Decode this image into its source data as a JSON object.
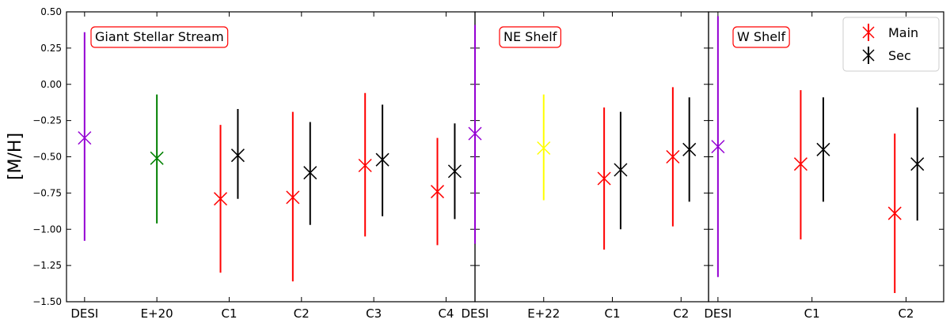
{
  "chart_data": {
    "type": "errorbar",
    "ylabel": "[M/H]",
    "ylim": [
      -1.5,
      0.5
    ],
    "yticks": [
      "0.50",
      "0.25",
      "0.00",
      "−0.25",
      "−0.50",
      "−0.75",
      "−1.00",
      "−1.25",
      "−1.50"
    ],
    "ytick_values": [
      0.5,
      0.25,
      0.0,
      -0.25,
      -0.5,
      -0.75,
      -1.0,
      -1.25,
      -1.5
    ],
    "legend": {
      "placement": "top-right",
      "entries": [
        {
          "label": "Main",
          "color": "#ff0000"
        },
        {
          "label": "Sec",
          "color": "#000000"
        }
      ]
    },
    "panels": [
      {
        "label": "Giant Stellar Stream",
        "x_ticks": [
          {
            "label": "DESI",
            "x": 0
          },
          {
            "label": "E+20",
            "x": 1
          },
          {
            "label": "C1",
            "x": 2
          },
          {
            "label": "C2",
            "x": 3
          },
          {
            "label": "C3",
            "x": 4
          },
          {
            "label": "C4",
            "x": 5
          }
        ],
        "xlim": [
          -0.25,
          5.4
        ],
        "points": [
          {
            "x": 0.0,
            "y": -0.37,
            "low": -1.08,
            "high": 0.36,
            "color": "#9400d3",
            "series": "DESI"
          },
          {
            "x": 1.0,
            "y": -0.51,
            "low": -0.96,
            "high": -0.07,
            "color": "#008000",
            "series": "E+20"
          },
          {
            "x": 1.88,
            "y": -0.79,
            "low": -1.3,
            "high": -0.28,
            "color": "#ff0000",
            "series": "Main"
          },
          {
            "x": 2.12,
            "y": -0.49,
            "low": -0.79,
            "high": -0.17,
            "color": "#000000",
            "series": "Sec"
          },
          {
            "x": 2.88,
            "y": -0.78,
            "low": -1.36,
            "high": -0.19,
            "color": "#ff0000",
            "series": "Main"
          },
          {
            "x": 3.12,
            "y": -0.61,
            "low": -0.97,
            "high": -0.26,
            "color": "#000000",
            "series": "Sec"
          },
          {
            "x": 3.88,
            "y": -0.56,
            "low": -1.05,
            "high": -0.06,
            "color": "#ff0000",
            "series": "Main"
          },
          {
            "x": 4.12,
            "y": -0.52,
            "low": -0.91,
            "high": -0.14,
            "color": "#000000",
            "series": "Sec"
          },
          {
            "x": 4.88,
            "y": -0.74,
            "low": -1.11,
            "high": -0.37,
            "color": "#ff0000",
            "series": "Main"
          },
          {
            "x": 5.12,
            "y": -0.6,
            "low": -0.93,
            "high": -0.27,
            "color": "#000000",
            "series": "Sec"
          }
        ]
      },
      {
        "label": "NE Shelf",
        "x_ticks": [
          {
            "label": "DESI",
            "x": 0
          },
          {
            "label": "E+22",
            "x": 1
          },
          {
            "label": "C1",
            "x": 2
          },
          {
            "label": "C2",
            "x": 3
          }
        ],
        "xlim": [
          0.0,
          3.4
        ],
        "points": [
          {
            "x": 0.0,
            "y": -0.34,
            "low": -1.1,
            "high": 0.41,
            "color": "#9400d3",
            "series": "DESI"
          },
          {
            "x": 1.0,
            "y": -0.44,
            "low": -0.8,
            "high": -0.07,
            "color": "#ffff00",
            "series": "E+22"
          },
          {
            "x": 1.88,
            "y": -0.65,
            "low": -1.14,
            "high": -0.16,
            "color": "#ff0000",
            "series": "Main"
          },
          {
            "x": 2.12,
            "y": -0.59,
            "low": -1.0,
            "high": -0.19,
            "color": "#000000",
            "series": "Sec"
          },
          {
            "x": 2.88,
            "y": -0.5,
            "low": -0.98,
            "high": -0.02,
            "color": "#ff0000",
            "series": "Main"
          },
          {
            "x": 3.12,
            "y": -0.45,
            "low": -0.81,
            "high": -0.09,
            "color": "#000000",
            "series": "Sec"
          }
        ]
      },
      {
        "label": "W Shelf",
        "x_ticks": [
          {
            "label": "DESI",
            "x": 0
          },
          {
            "label": "C1",
            "x": 1
          },
          {
            "label": "C2",
            "x": 2
          }
        ],
        "xlim": [
          -0.1,
          2.4
        ],
        "points": [
          {
            "x": 0.0,
            "y": -0.43,
            "low": -1.33,
            "high": 0.47,
            "color": "#9400d3",
            "series": "DESI"
          },
          {
            "x": 0.88,
            "y": -0.55,
            "low": -1.07,
            "high": -0.04,
            "color": "#ff0000",
            "series": "Main"
          },
          {
            "x": 1.12,
            "y": -0.45,
            "low": -0.81,
            "high": -0.09,
            "color": "#000000",
            "series": "Sec"
          },
          {
            "x": 1.88,
            "y": -0.89,
            "low": -1.44,
            "high": -0.34,
            "color": "#ff0000",
            "series": "Main"
          },
          {
            "x": 2.12,
            "y": -0.55,
            "low": -0.94,
            "high": -0.16,
            "color": "#000000",
            "series": "Sec"
          }
        ]
      }
    ]
  }
}
